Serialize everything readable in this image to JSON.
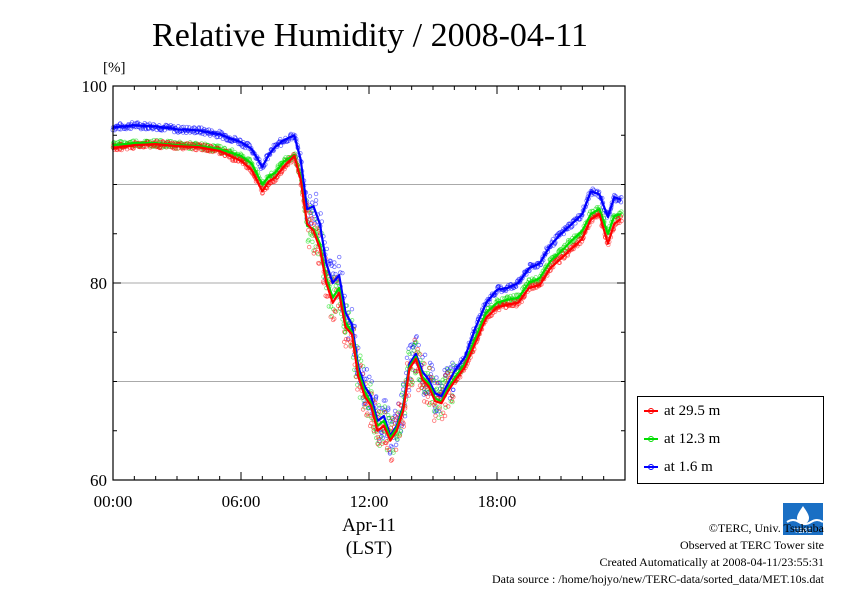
{
  "chart_data": {
    "type": "line",
    "title": "Relative Humidity / 2008-04-11",
    "ylabel": "[%]",
    "xlabel": "Apr-11",
    "xlabel2": "(LST)",
    "ylim": [
      60,
      100
    ],
    "xlim": [
      0,
      24
    ],
    "yticks": [
      "60",
      "80",
      "100"
    ],
    "xticks": [
      "00:00",
      "06:00",
      "12:00",
      "18:00"
    ],
    "grid": true,
    "legend_position": "right",
    "series": [
      {
        "name": "at 29.5 m",
        "color": "#ff0000",
        "x": [
          0,
          1,
          2,
          3,
          4,
          5,
          6,
          6.5,
          7,
          7.3,
          7.6,
          8,
          8.5,
          8.8,
          9.1,
          9.4,
          9.7,
          10,
          10.3,
          10.6,
          10.9,
          11.2,
          11.5,
          11.8,
          12.1,
          12.4,
          12.7,
          13,
          13.3,
          13.6,
          13.9,
          14.2,
          14.5,
          14.8,
          15.1,
          15.4,
          15.7,
          16,
          16.5,
          17,
          17.5,
          18,
          18.5,
          19,
          19.5,
          20,
          20.5,
          21,
          21.5,
          22,
          22.4,
          22.8,
          23.2,
          23.5,
          23.8
        ],
        "values": [
          93.7,
          94.0,
          94.1,
          93.9,
          93.8,
          93.4,
          92.4,
          91.5,
          89.3,
          90.3,
          90.7,
          91.8,
          92.9,
          90.5,
          86.0,
          85.3,
          83.5,
          80.0,
          78.0,
          79.0,
          75.5,
          74.8,
          70.5,
          68.5,
          67.5,
          65.0,
          65.5,
          64.0,
          65.0,
          67.0,
          71.3,
          72.3,
          70.2,
          69.5,
          68.0,
          67.8,
          69.0,
          70.0,
          71.5,
          74.0,
          76.5,
          77.5,
          77.8,
          78.0,
          79.5,
          79.8,
          81.5,
          82.5,
          83.5,
          84.5,
          86.5,
          87.0,
          84.0,
          86.0,
          86.5
        ]
      },
      {
        "name": "at 12.3 m",
        "color": "#00dd00",
        "x": [
          0,
          1,
          2,
          3,
          4,
          5,
          6,
          6.5,
          7,
          7.3,
          7.6,
          8,
          8.5,
          8.8,
          9.1,
          9.4,
          9.7,
          10,
          10.3,
          10.6,
          10.9,
          11.2,
          11.5,
          11.8,
          12.1,
          12.4,
          12.7,
          13,
          13.3,
          13.6,
          13.9,
          14.2,
          14.5,
          14.8,
          15.1,
          15.4,
          15.7,
          16,
          16.5,
          17,
          17.5,
          18,
          18.5,
          19,
          19.5,
          20,
          20.5,
          21,
          21.5,
          22,
          22.4,
          22.8,
          23.2,
          23.5,
          23.8
        ],
        "values": [
          94.0,
          94.2,
          94.2,
          94.0,
          93.9,
          93.6,
          92.9,
          92.1,
          90.0,
          90.8,
          91.2,
          92.3,
          93.0,
          90.8,
          85.8,
          85.5,
          84.0,
          80.5,
          78.5,
          79.5,
          76.0,
          75.0,
          71.0,
          69.0,
          67.8,
          65.5,
          66.0,
          64.3,
          65.3,
          67.3,
          71.5,
          72.5,
          70.5,
          69.8,
          68.3,
          68.0,
          69.3,
          70.3,
          71.8,
          74.5,
          77.0,
          78.0,
          78.3,
          78.5,
          80.0,
          80.5,
          82.2,
          83.2,
          84.3,
          85.3,
          87.0,
          87.5,
          85.0,
          86.8,
          87.0
        ]
      },
      {
        "name": "at 1.6 m",
        "color": "#0000ff",
        "x": [
          0,
          1,
          2,
          3,
          4,
          5,
          6,
          6.5,
          7,
          7.3,
          7.6,
          8,
          8.5,
          8.8,
          9.1,
          9.4,
          9.7,
          10,
          10.3,
          10.6,
          10.9,
          11.2,
          11.5,
          11.8,
          12.1,
          12.4,
          12.7,
          13,
          13.3,
          13.6,
          13.9,
          14.2,
          14.5,
          14.8,
          15.1,
          15.4,
          15.7,
          16,
          16.5,
          17,
          17.5,
          18,
          18.5,
          19,
          19.5,
          20,
          20.5,
          21,
          21.5,
          22,
          22.4,
          22.8,
          23.2,
          23.5,
          23.8
        ],
        "values": [
          95.8,
          96.0,
          95.9,
          95.6,
          95.5,
          95.1,
          94.3,
          93.6,
          91.8,
          93.0,
          93.8,
          94.5,
          95.0,
          92.5,
          87.5,
          87.8,
          86.0,
          82.0,
          80.0,
          80.8,
          77.0,
          75.8,
          71.5,
          69.5,
          68.5,
          66.0,
          66.5,
          64.5,
          65.5,
          67.5,
          71.8,
          72.8,
          71.0,
          70.2,
          68.8,
          68.5,
          69.8,
          71.0,
          72.5,
          75.5,
          78.0,
          79.3,
          79.5,
          80.0,
          81.5,
          82.0,
          83.8,
          85.0,
          86.0,
          87.0,
          89.3,
          89.0,
          86.7,
          88.7,
          88.5
        ]
      }
    ]
  },
  "credits": {
    "copyright": "©TERC, Univ. Tsukuba",
    "observed": "Observed at TERC Tower site",
    "created": "Created Automatically at 2008-04-11/23:55:31",
    "source": "Data source : /home/hojyo/new/TERC-data/sorted_data/MET.10s.dat",
    "logo_text": "TERC"
  }
}
